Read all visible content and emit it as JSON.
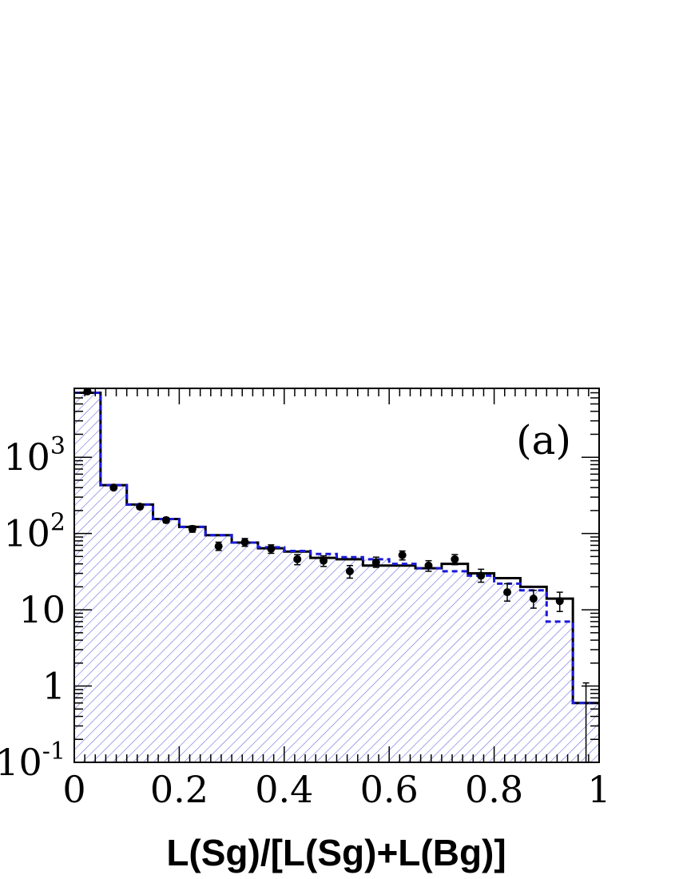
{
  "chart_data": {
    "type": "histogram",
    "panel_label": "(a)",
    "xlabel": "L(Sg)/[L(Sg)+L(Bg)]",
    "ylabel": "",
    "xlim": [
      0,
      1
    ],
    "ylim": [
      0.1,
      8000
    ],
    "yscale": "log",
    "grid": false,
    "x_ticks": [
      {
        "value": 0,
        "label": "0"
      },
      {
        "value": 0.2,
        "label": "0.2"
      },
      {
        "value": 0.4,
        "label": "0.4"
      },
      {
        "value": 0.6,
        "label": "0.6"
      },
      {
        "value": 0.8,
        "label": "0.8"
      },
      {
        "value": 1,
        "label": "1"
      }
    ],
    "y_ticks": [
      {
        "value": 0.1,
        "base": "10",
        "exp": "-1"
      },
      {
        "value": 1,
        "base": "1",
        "exp": ""
      },
      {
        "value": 10,
        "base": "10",
        "exp": ""
      },
      {
        "value": 100,
        "base": "10",
        "exp": "2"
      },
      {
        "value": 1000,
        "base": "10",
        "exp": "3"
      }
    ],
    "bin_edges": [
      0,
      0.05,
      0.1,
      0.15,
      0.2,
      0.25,
      0.3,
      0.35,
      0.4,
      0.45,
      0.5,
      0.55,
      0.6,
      0.65,
      0.7,
      0.75,
      0.8,
      0.85,
      0.9,
      0.95,
      1.0
    ],
    "series": [
      {
        "style": "hatched-fill",
        "color": "#4444cc",
        "values": [
          7000,
          430,
          240,
          155,
          120,
          95,
          76,
          66,
          59,
          54,
          49,
          46,
          40,
          35,
          32,
          28,
          22,
          18,
          7,
          0.6
        ]
      },
      {
        "style": "solid-line",
        "color": "#000000",
        "values": [
          7000,
          430,
          240,
          155,
          122,
          95,
          76,
          64,
          58,
          48,
          46,
          38,
          38,
          35,
          40,
          30,
          26,
          20,
          14,
          0.6
        ]
      },
      {
        "style": "dashed-line",
        "color": "#1a1ad9",
        "values": [
          7000,
          430,
          240,
          155,
          122,
          95,
          76,
          66,
          59,
          54,
          49,
          46,
          40,
          35,
          32,
          28,
          22,
          18,
          7,
          0.6
        ]
      },
      {
        "style": "points-with-errors",
        "color": "#000000",
        "x": [
          0.025,
          0.075,
          0.125,
          0.175,
          0.225,
          0.275,
          0.325,
          0.375,
          0.425,
          0.475,
          0.525,
          0.575,
          0.625,
          0.675,
          0.725,
          0.775,
          0.825,
          0.875,
          0.925,
          0.975
        ],
        "values": [
          7300,
          400,
          225,
          150,
          115,
          68,
          77,
          63,
          46,
          44,
          32,
          42,
          52,
          38,
          46,
          28,
          17,
          14,
          13,
          0
        ],
        "error_up": [
          85,
          20,
          15,
          12,
          11,
          9,
          9,
          8,
          7,
          7,
          6,
          7,
          7,
          6,
          7,
          6,
          5,
          4,
          4,
          1.1
        ],
        "error_down": [
          85,
          20,
          15,
          12,
          11,
          8,
          9,
          8,
          7,
          7,
          6,
          6,
          7,
          6,
          7,
          5,
          4,
          3.5,
          3.5,
          0
        ]
      }
    ]
  }
}
